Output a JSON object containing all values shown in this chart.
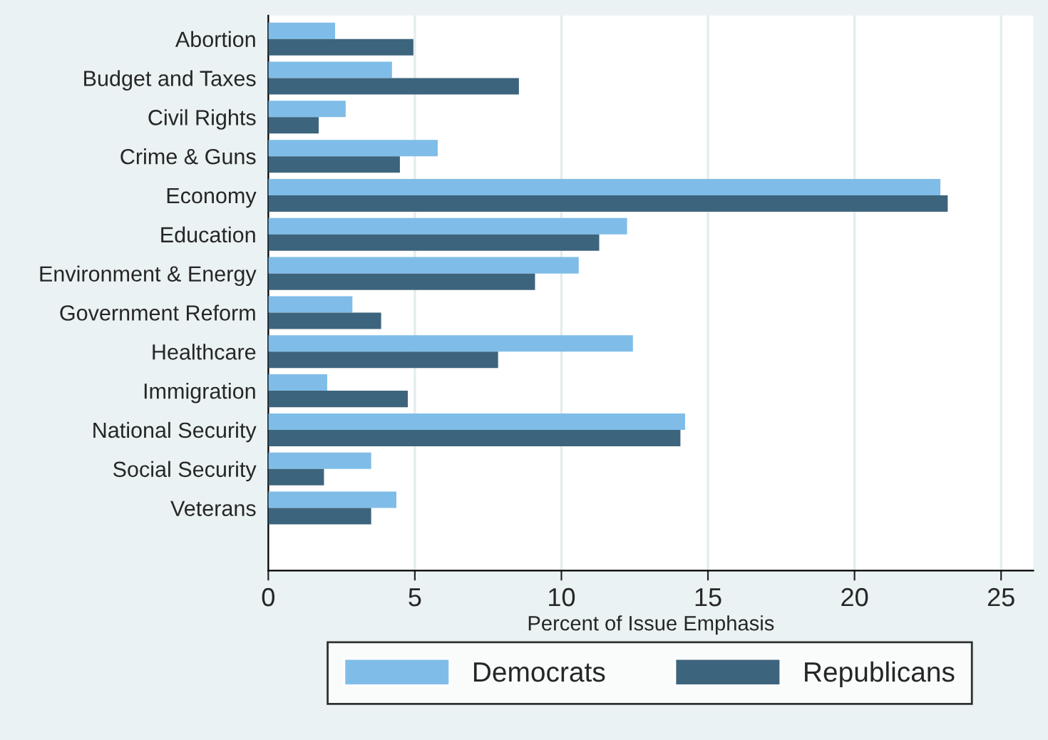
{
  "chart_data": {
    "type": "bar",
    "orientation": "horizontal",
    "xlabel": "Percent of Issue Emphasis",
    "categories": [
      "Abortion",
      "Budget and Taxes",
      "Civil Rights",
      "Crime & Guns",
      "Economy",
      "Education",
      "Environment & Energy",
      "Government Reform",
      "Healthcare",
      "Immigration",
      "National Security",
      "Social Security",
      "Veterans"
    ],
    "series": [
      {
        "name": "Democrats",
        "color": "#7fbde8",
        "values": [
          2.28,
          4.22,
          2.64,
          5.78,
          22.93,
          12.24,
          10.59,
          2.87,
          12.44,
          2.01,
          14.22,
          3.51,
          4.37
        ]
      },
      {
        "name": "Republicans",
        "color": "#3d647d",
        "values": [
          4.95,
          8.55,
          1.72,
          4.49,
          23.18,
          11.29,
          9.1,
          3.85,
          7.84,
          4.76,
          14.06,
          1.9,
          3.51
        ]
      }
    ],
    "xlim": [
      0,
      26.1
    ],
    "xticks": [
      0,
      5,
      10,
      15,
      20,
      25
    ],
    "grid": "x",
    "legend": "bottom"
  }
}
